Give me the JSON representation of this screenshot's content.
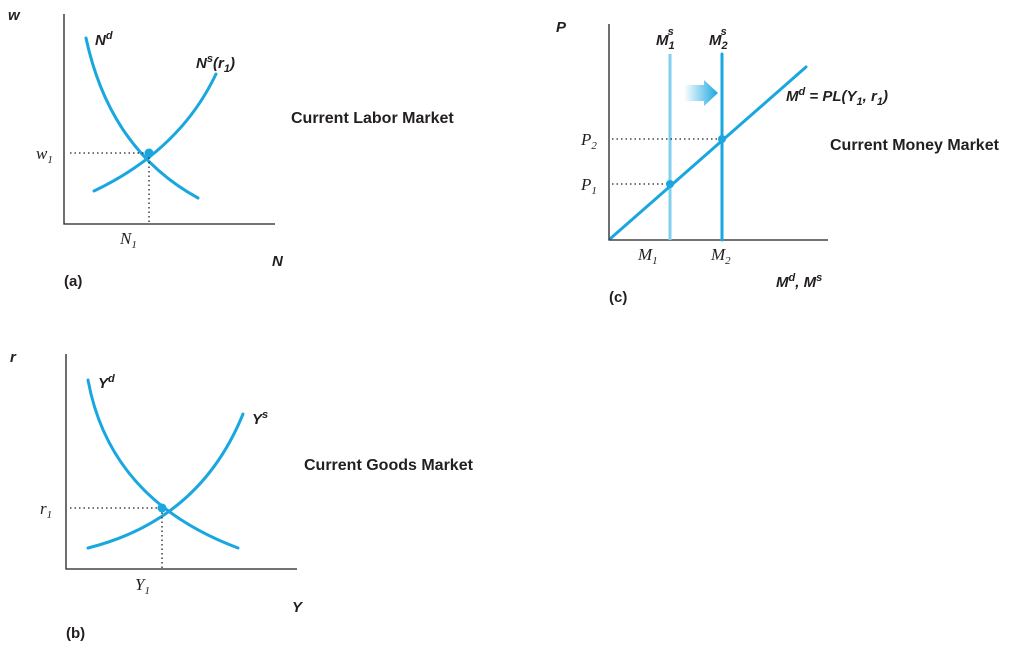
{
  "panel_a": {
    "panel_label": "(a)",
    "title": "Current Labor Market",
    "y_axis": "w",
    "x_axis": "N",
    "demand": {
      "base": "N",
      "sup": "d"
    },
    "supply": {
      "base": "N",
      "sup": "s",
      "arg_open": "(",
      "arg_base": "r",
      "arg_sub": "1",
      "arg_close": ")"
    },
    "y_tick": {
      "base": "w",
      "sub": "1"
    },
    "x_tick": {
      "base": "N",
      "sub": "1"
    }
  },
  "panel_b": {
    "panel_label": "(b)",
    "title": "Current Goods Market",
    "y_axis": "r",
    "x_axis": "Y",
    "demand": {
      "base": "Y",
      "sup": "d"
    },
    "supply": {
      "base": "Y",
      "sup": "s"
    },
    "y_tick": {
      "base": "r",
      "sub": "1"
    },
    "x_tick": {
      "base": "Y",
      "sub": "1"
    }
  },
  "panel_c": {
    "panel_label": "(c)",
    "title": "Current Money Market",
    "y_axis": "P",
    "x_axis": {
      "m1": "M",
      "sup1": "d",
      "sep": ", ",
      "m2": "M",
      "sup2": "s"
    },
    "supply_1": {
      "base": "M",
      "sub": "1",
      "sup": "s"
    },
    "supply_2": {
      "base": "M",
      "sub": "2",
      "sup": "s"
    },
    "demand": {
      "base": "M",
      "sup": "d",
      "eq": " = PL(Y",
      "sub": "1",
      "rest": ", r",
      "sub2": "1",
      "close": ")"
    },
    "y_ticks": [
      {
        "base": "P",
        "sub": "2"
      },
      {
        "base": "P",
        "sub": "1"
      }
    ],
    "x_ticks": [
      {
        "base": "M",
        "sub": "1"
      },
      {
        "base": "M",
        "sub": "2"
      }
    ]
  },
  "colors": {
    "curve": "#1aa7df",
    "curve_light": "#7fd0ef",
    "axis": "#231f20"
  }
}
